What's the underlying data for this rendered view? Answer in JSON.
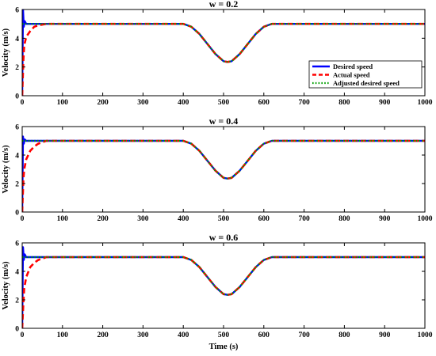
{
  "chart_data": [
    {
      "type": "line",
      "title": "w = 0.2",
      "xlabel": "",
      "ylabel": "Velocity (m/s)",
      "xlim": [
        0,
        1000
      ],
      "ylim": [
        0,
        6
      ],
      "xticks": [
        "0",
        "100",
        "200",
        "300",
        "400",
        "500",
        "600",
        "700",
        "800",
        "900",
        "1000"
      ],
      "yticks": [
        "0",
        "2",
        "4",
        "6"
      ],
      "legend": {
        "position": "right",
        "entries": [
          "Desired speed",
          "Actual speed",
          "Adjusted desired speed"
        ]
      },
      "series": [
        {
          "name": "Desired speed",
          "color": "#0000ff",
          "style": "solid",
          "x": [
            0,
            2,
            4,
            6,
            10,
            20,
            400,
            420,
            440,
            460,
            480,
            500,
            510,
            520,
            540,
            560,
            580,
            600,
            620,
            640,
            1000
          ],
          "y": [
            0,
            6,
            4.8,
            5.2,
            5.0,
            5.0,
            5.0,
            4.8,
            4.3,
            3.6,
            2.9,
            2.4,
            2.35,
            2.4,
            2.9,
            3.6,
            4.3,
            4.8,
            5.0,
            5.0,
            5.0
          ]
        },
        {
          "name": "Actual speed",
          "color": "#ff0000",
          "style": "dashed",
          "x": [
            0,
            3,
            5,
            10,
            20,
            30,
            40,
            60,
            80,
            400,
            420,
            440,
            460,
            480,
            500,
            510,
            520,
            540,
            560,
            580,
            600,
            620,
            640,
            1000
          ],
          "y": [
            0,
            2.5,
            3.5,
            4.1,
            4.5,
            4.8,
            4.9,
            5.0,
            5.0,
            5.0,
            4.8,
            4.3,
            3.6,
            2.9,
            2.4,
            2.35,
            2.4,
            2.9,
            3.6,
            4.3,
            4.8,
            5.0,
            5.0,
            5.0
          ]
        },
        {
          "name": "Adjusted desired speed",
          "color": "#00a000",
          "style": "dotted",
          "x": [
            0,
            20,
            400,
            420,
            440,
            460,
            480,
            500,
            510,
            520,
            540,
            560,
            580,
            600,
            620,
            640,
            1000
          ],
          "y": [
            5.0,
            5.0,
            5.0,
            4.8,
            4.3,
            3.6,
            2.9,
            2.4,
            2.35,
            2.4,
            2.9,
            3.6,
            4.3,
            4.8,
            5.0,
            5.0,
            5.0
          ]
        }
      ]
    },
    {
      "type": "line",
      "title": "w = 0.4",
      "xlabel": "",
      "ylabel": "Velocity (m/s)",
      "xlim": [
        0,
        1000
      ],
      "ylim": [
        0,
        6
      ],
      "xticks": [
        "0",
        "100",
        "200",
        "300",
        "400",
        "500",
        "600",
        "700",
        "800",
        "900",
        "1000"
      ],
      "yticks": [
        "0",
        "2",
        "4",
        "6"
      ],
      "series": [
        {
          "name": "Desired speed",
          "color": "#0000ff",
          "style": "solid",
          "x": [
            0,
            2,
            4,
            6,
            10,
            20,
            400,
            420,
            440,
            460,
            480,
            500,
            510,
            520,
            540,
            560,
            580,
            600,
            620,
            640,
            1000
          ],
          "y": [
            0,
            5.3,
            4.8,
            5.1,
            5.0,
            5.0,
            5.0,
            4.8,
            4.3,
            3.6,
            2.9,
            2.4,
            2.35,
            2.4,
            2.9,
            3.6,
            4.3,
            4.8,
            5.0,
            5.0,
            5.0
          ]
        },
        {
          "name": "Actual speed",
          "color": "#ff0000",
          "style": "dashed",
          "x": [
            0,
            3,
            5,
            10,
            20,
            30,
            40,
            60,
            80,
            400,
            420,
            440,
            460,
            480,
            500,
            510,
            520,
            540,
            560,
            580,
            600,
            620,
            640,
            1000
          ],
          "y": [
            0,
            2.3,
            3.0,
            3.7,
            4.3,
            4.6,
            4.8,
            5.0,
            5.0,
            5.0,
            4.8,
            4.3,
            3.6,
            2.9,
            2.4,
            2.35,
            2.4,
            2.9,
            3.6,
            4.3,
            4.8,
            5.0,
            5.0,
            5.0
          ]
        },
        {
          "name": "Adjusted desired speed",
          "color": "#00a000",
          "style": "dotted",
          "x": [
            0,
            20,
            400,
            420,
            440,
            460,
            480,
            500,
            510,
            520,
            540,
            560,
            580,
            600,
            620,
            640,
            1000
          ],
          "y": [
            5.0,
            5.0,
            5.0,
            4.8,
            4.3,
            3.6,
            2.9,
            2.4,
            2.35,
            2.4,
            2.9,
            3.6,
            4.3,
            4.8,
            5.0,
            5.0,
            5.0
          ]
        }
      ]
    },
    {
      "type": "line",
      "title": "w = 0.6",
      "xlabel": "Time (s)",
      "ylabel": "Velocity (m/s)",
      "xlim": [
        0,
        1000
      ],
      "ylim": [
        0,
        6
      ],
      "xticks": [
        "0",
        "100",
        "200",
        "300",
        "400",
        "500",
        "600",
        "700",
        "800",
        "900",
        "1000"
      ],
      "yticks": [
        "0",
        "2",
        "4",
        "6"
      ],
      "series": [
        {
          "name": "Desired speed",
          "color": "#0000ff",
          "style": "solid",
          "x": [
            0,
            2,
            4,
            6,
            10,
            20,
            400,
            420,
            440,
            460,
            480,
            500,
            510,
            520,
            540,
            560,
            580,
            600,
            620,
            640,
            1000
          ],
          "y": [
            0,
            5.7,
            4.8,
            5.2,
            5.0,
            5.0,
            5.0,
            4.8,
            4.3,
            3.6,
            2.9,
            2.4,
            2.35,
            2.4,
            2.9,
            3.6,
            4.3,
            4.8,
            5.0,
            5.0,
            5.0
          ]
        },
        {
          "name": "Actual speed",
          "color": "#ff0000",
          "style": "dashed",
          "x": [
            0,
            3,
            5,
            10,
            20,
            30,
            40,
            60,
            80,
            400,
            420,
            440,
            460,
            480,
            500,
            510,
            520,
            540,
            560,
            580,
            600,
            620,
            640,
            1000
          ],
          "y": [
            0,
            1.8,
            2.8,
            3.6,
            4.3,
            4.6,
            4.8,
            5.0,
            5.0,
            5.0,
            4.8,
            4.3,
            3.6,
            2.9,
            2.4,
            2.35,
            2.4,
            2.9,
            3.6,
            4.3,
            4.8,
            5.0,
            5.0,
            5.0
          ]
        },
        {
          "name": "Adjusted desired speed",
          "color": "#00a000",
          "style": "dotted",
          "x": [
            0,
            20,
            400,
            420,
            440,
            460,
            480,
            500,
            510,
            520,
            540,
            560,
            580,
            600,
            620,
            640,
            1000
          ],
          "y": [
            5.0,
            5.0,
            5.0,
            4.8,
            4.3,
            3.6,
            2.9,
            2.4,
            2.35,
            2.4,
            2.9,
            3.6,
            4.3,
            4.8,
            5.0,
            5.0,
            5.0
          ]
        }
      ]
    }
  ]
}
